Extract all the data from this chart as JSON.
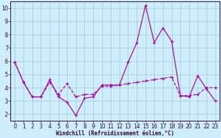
{
  "xlabel": "Windchill (Refroidissement éolien,°C)",
  "ylabel": "",
  "background_color": "#cceeff",
  "grid_color": "#aacccc",
  "line_color": "#aa00aa",
  "xlim": [
    -0.5,
    23.5
  ],
  "ylim": [
    1.5,
    10.5
  ],
  "yticks": [
    2,
    3,
    4,
    5,
    6,
    7,
    8,
    9,
    10
  ],
  "xticks": [
    0,
    1,
    2,
    3,
    4,
    5,
    6,
    7,
    8,
    9,
    10,
    11,
    12,
    13,
    14,
    15,
    16,
    17,
    18,
    19,
    20,
    21,
    22,
    23
  ],
  "series1_x": [
    0,
    1,
    2,
    3,
    4,
    5,
    6,
    7,
    8,
    9,
    10,
    11,
    12,
    13,
    14,
    15,
    16,
    17,
    18,
    19,
    20,
    21,
    22,
    23
  ],
  "series1_y": [
    5.9,
    4.4,
    3.3,
    3.3,
    4.6,
    3.3,
    2.9,
    1.9,
    3.2,
    3.3,
    4.2,
    4.2,
    4.2,
    5.9,
    7.4,
    10.2,
    7.4,
    8.5,
    7.5,
    3.4,
    3.3,
    4.9,
    3.9,
    3.0
  ],
  "series2_x": [
    0,
    1,
    2,
    3,
    4,
    5,
    6,
    7,
    8,
    9,
    10,
    11,
    12,
    13,
    14,
    15,
    16,
    17,
    18,
    19,
    20,
    21,
    22,
    23
  ],
  "series2_y": [
    5.9,
    4.4,
    3.3,
    3.3,
    4.4,
    3.5,
    4.3,
    3.3,
    3.5,
    3.5,
    4.1,
    4.1,
    4.2,
    4.3,
    4.4,
    4.5,
    4.6,
    4.7,
    4.8,
    3.4,
    3.4,
    3.5,
    4.0,
    4.0
  ],
  "tick_fontsize": 5.5,
  "xlabel_fontsize": 5.5,
  "marker_size": 3,
  "linewidth": 0.9
}
